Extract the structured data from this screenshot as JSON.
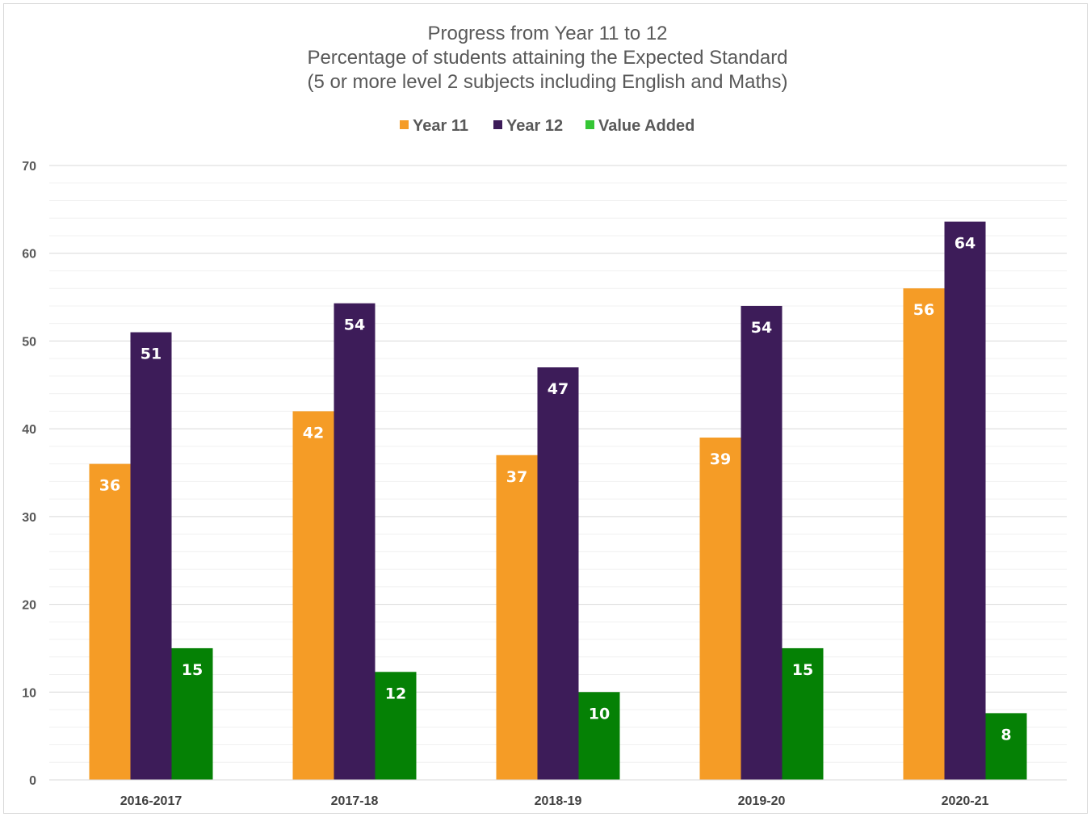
{
  "chart_data": {
    "type": "bar",
    "title": [
      "Progress from Year 11 to 12",
      "Percentage of students attaining the Expected Standard",
      "(5 or more level 2 subjects including English and Maths)"
    ],
    "categories": [
      "2016-2017",
      "2017-18",
      "2018-19",
      "2019-20",
      "2020-21"
    ],
    "series": [
      {
        "name": "Year 11",
        "color": "#f59c26",
        "values": [
          36,
          42,
          37,
          39,
          56
        ],
        "labels": [
          "36",
          "42",
          "37",
          "39",
          "56"
        ]
      },
      {
        "name": "Year 12",
        "color": "#3d1c59",
        "values": [
          51,
          54.3,
          47,
          54,
          63.6
        ],
        "labels": [
          "51",
          "54",
          "47",
          "54",
          "64"
        ]
      },
      {
        "name": "Value Added",
        "color": "#058105",
        "values": [
          15,
          12.3,
          10,
          15,
          7.6
        ],
        "labels": [
          "15",
          "12",
          "10",
          "15",
          "8"
        ]
      }
    ],
    "legend_colors": {
      "Year 11": "#f59c26",
      "Year 12": "#3d1c59",
      "Value Added": "#35c635"
    },
    "ylim": [
      0,
      70
    ],
    "yticks": [
      0,
      10,
      20,
      30,
      40,
      50,
      60,
      70
    ],
    "minor_step": 2,
    "grid": true,
    "legend_position": "top-center",
    "xlabel": "",
    "ylabel": ""
  }
}
